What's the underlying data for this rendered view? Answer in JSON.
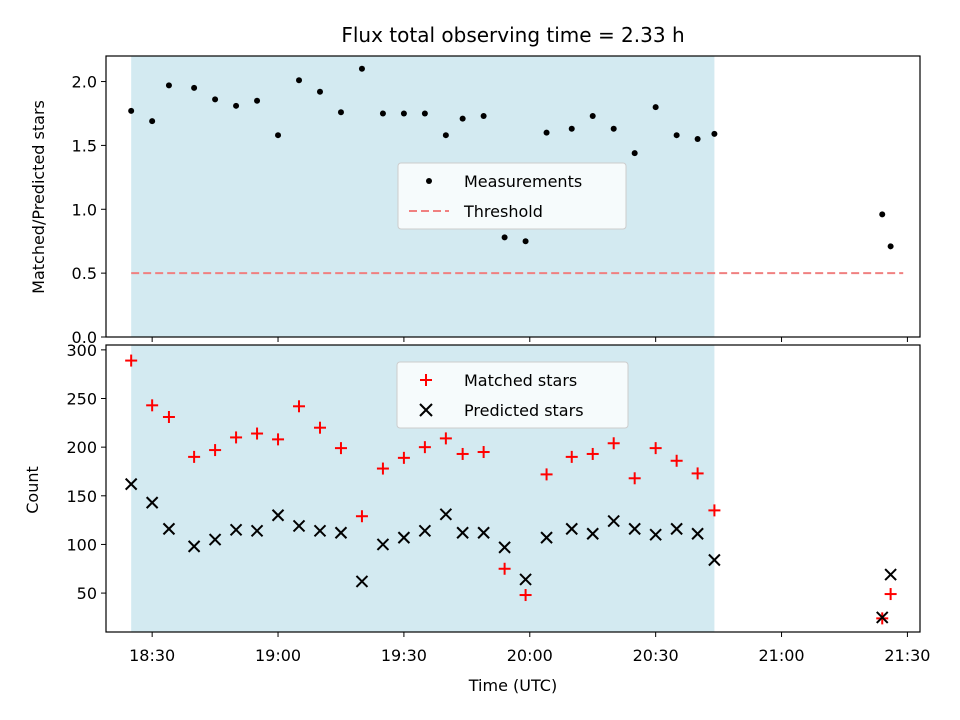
{
  "chart_data": [
    {
      "type": "scatter",
      "title": "Flux total observing time = 2.33 h",
      "ylabel": "Matched/Predicted stars",
      "xlabel": "",
      "ylim": [
        0,
        2.2
      ],
      "yticks": [
        "0.0",
        "0.5",
        "1.0",
        "1.5",
        "2.0"
      ],
      "shaded_span": {
        "start": "18:25",
        "end": "20:44",
        "color": "#d3eaf1"
      },
      "legend_placement": "center",
      "threshold": {
        "name": "Threshold",
        "value": 0.5,
        "x_start": "18:25",
        "x_end": "21:29",
        "color": "#f08080"
      },
      "series": [
        {
          "name": "Measurements",
          "color": "#000000",
          "points": [
            [
              "18:25",
              1.77
            ],
            [
              "18:30",
              1.69
            ],
            [
              "18:34",
              1.97
            ],
            [
              "18:40",
              1.95
            ],
            [
              "18:45",
              1.86
            ],
            [
              "18:50",
              1.81
            ],
            [
              "18:55",
              1.85
            ],
            [
              "19:00",
              1.58
            ],
            [
              "19:05",
              2.01
            ],
            [
              "19:10",
              1.92
            ],
            [
              "19:15",
              1.76
            ],
            [
              "19:20",
              2.1
            ],
            [
              "19:25",
              1.75
            ],
            [
              "19:30",
              1.75
            ],
            [
              "19:35",
              1.75
            ],
            [
              "19:40",
              1.58
            ],
            [
              "19:44",
              1.71
            ],
            [
              "19:49",
              1.73
            ],
            [
              "19:54",
              0.78
            ],
            [
              "19:59",
              0.75
            ],
            [
              "20:04",
              1.6
            ],
            [
              "20:10",
              1.63
            ],
            [
              "20:15",
              1.73
            ],
            [
              "20:20",
              1.63
            ],
            [
              "20:25",
              1.44
            ],
            [
              "20:30",
              1.8
            ],
            [
              "20:35",
              1.58
            ],
            [
              "20:40",
              1.55
            ],
            [
              "20:44",
              1.59
            ],
            [
              "21:24",
              0.96
            ],
            [
              "21:26",
              0.71
            ]
          ]
        }
      ]
    },
    {
      "type": "scatter",
      "title": "",
      "ylabel": "Count",
      "xlabel": "Time (UTC)",
      "ylim": [
        10,
        305
      ],
      "yticks": [
        "50",
        "100",
        "150",
        "200",
        "250",
        "300"
      ],
      "xticks": [
        "18:30",
        "19:00",
        "19:30",
        "20:00",
        "20:30",
        "21:00",
        "21:30"
      ],
      "xlim": [
        "18:19",
        "21:33"
      ],
      "shaded_span": {
        "start": "18:25",
        "end": "20:44",
        "color": "#d3eaf1"
      },
      "legend_placement": "upper center",
      "series": [
        {
          "name": "Matched stars",
          "marker": "plus",
          "color": "#ff0000",
          "points": [
            [
              "18:25",
              289
            ],
            [
              "18:30",
              243
            ],
            [
              "18:34",
              231
            ],
            [
              "18:40",
              190
            ],
            [
              "18:45",
              197
            ],
            [
              "18:50",
              210
            ],
            [
              "18:55",
              214
            ],
            [
              "19:00",
              208
            ],
            [
              "19:05",
              242
            ],
            [
              "19:10",
              220
            ],
            [
              "19:15",
              199
            ],
            [
              "19:20",
              129
            ],
            [
              "19:25",
              178
            ],
            [
              "19:30",
              189
            ],
            [
              "19:35",
              200
            ],
            [
              "19:40",
              209
            ],
            [
              "19:44",
              193
            ],
            [
              "19:49",
              195
            ],
            [
              "19:54",
              75
            ],
            [
              "19:59",
              48
            ],
            [
              "20:04",
              172
            ],
            [
              "20:10",
              190
            ],
            [
              "20:15",
              193
            ],
            [
              "20:20",
              204
            ],
            [
              "20:25",
              168
            ],
            [
              "20:30",
              199
            ],
            [
              "20:35",
              186
            ],
            [
              "20:40",
              173
            ],
            [
              "20:44",
              135
            ],
            [
              "21:24",
              24
            ],
            [
              "21:26",
              49
            ]
          ]
        },
        {
          "name": "Predicted stars",
          "marker": "x",
          "color": "#000000",
          "points": [
            [
              "18:25",
              162
            ],
            [
              "18:30",
              143
            ],
            [
              "18:34",
              116
            ],
            [
              "18:40",
              98
            ],
            [
              "18:45",
              105
            ],
            [
              "18:50",
              115
            ],
            [
              "18:55",
              114
            ],
            [
              "19:00",
              130
            ],
            [
              "19:05",
              119
            ],
            [
              "19:10",
              114
            ],
            [
              "19:15",
              112
            ],
            [
              "19:20",
              62
            ],
            [
              "19:25",
              100
            ],
            [
              "19:30",
              107
            ],
            [
              "19:35",
              114
            ],
            [
              "19:40",
              131
            ],
            [
              "19:44",
              112
            ],
            [
              "19:49",
              112
            ],
            [
              "19:54",
              97
            ],
            [
              "19:59",
              64
            ],
            [
              "20:04",
              107
            ],
            [
              "20:10",
              116
            ],
            [
              "20:15",
              111
            ],
            [
              "20:20",
              124
            ],
            [
              "20:25",
              116
            ],
            [
              "20:30",
              110
            ],
            [
              "20:35",
              116
            ],
            [
              "20:40",
              111
            ],
            [
              "20:44",
              84
            ],
            [
              "21:24",
              25
            ],
            [
              "21:26",
              69
            ]
          ]
        }
      ]
    }
  ]
}
